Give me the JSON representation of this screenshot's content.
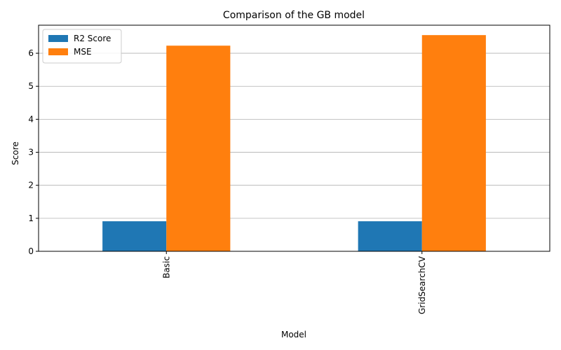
{
  "chart_data": {
    "type": "bar",
    "title": "Comparison of the GB model",
    "xlabel": "Model",
    "ylabel": "Score",
    "categories": [
      "Basic",
      "GridSearchCV"
    ],
    "series": [
      {
        "name": "R2 Score",
        "values": [
          0.91,
          0.91
        ],
        "color": "#1f77b4"
      },
      {
        "name": "MSE",
        "values": [
          6.23,
          6.55
        ],
        "color": "#ff7f0e"
      }
    ],
    "ylim": [
      0,
      6.85
    ],
    "yticks": [
      "0",
      "1",
      "2",
      "3",
      "4",
      "5",
      "6"
    ],
    "grid": "horizontal",
    "legend": "top-left"
  }
}
